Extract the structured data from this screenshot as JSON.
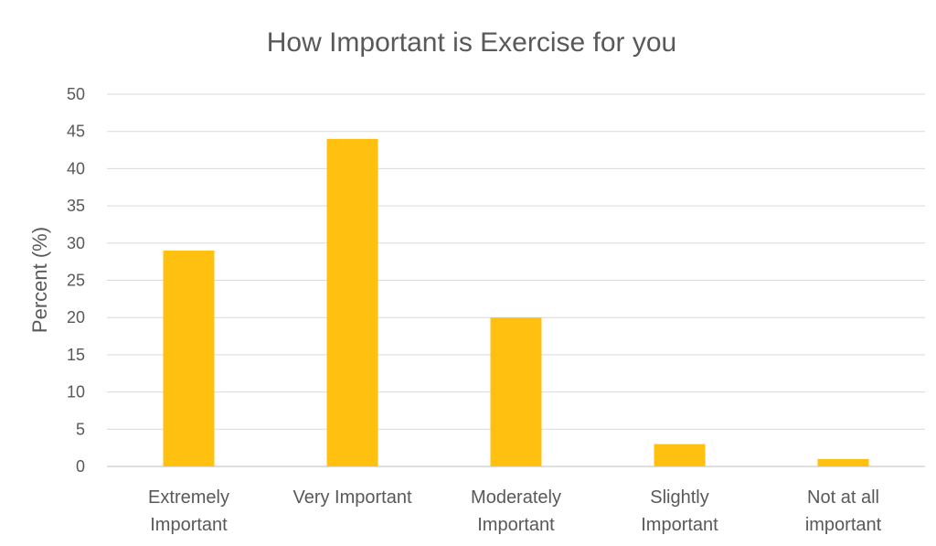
{
  "chart_data": {
    "type": "bar",
    "title": "How Important is Exercise for you",
    "ylabel": "Percent (%)",
    "xlabel": "",
    "categories": [
      [
        "Extremely",
        "Important"
      ],
      [
        "Very Important"
      ],
      [
        "Moderately",
        "Important"
      ],
      [
        "Slightly",
        "Important"
      ],
      [
        "Not at all",
        "important"
      ]
    ],
    "values": [
      29,
      44,
      20,
      3,
      1
    ],
    "ylim": [
      0,
      50
    ],
    "yticks": [
      "0",
      "5",
      "10",
      "15",
      "20",
      "25",
      "30",
      "35",
      "40",
      "45",
      "50"
    ],
    "bar_color": "#FFC010",
    "grid": true,
    "legend": "none"
  }
}
